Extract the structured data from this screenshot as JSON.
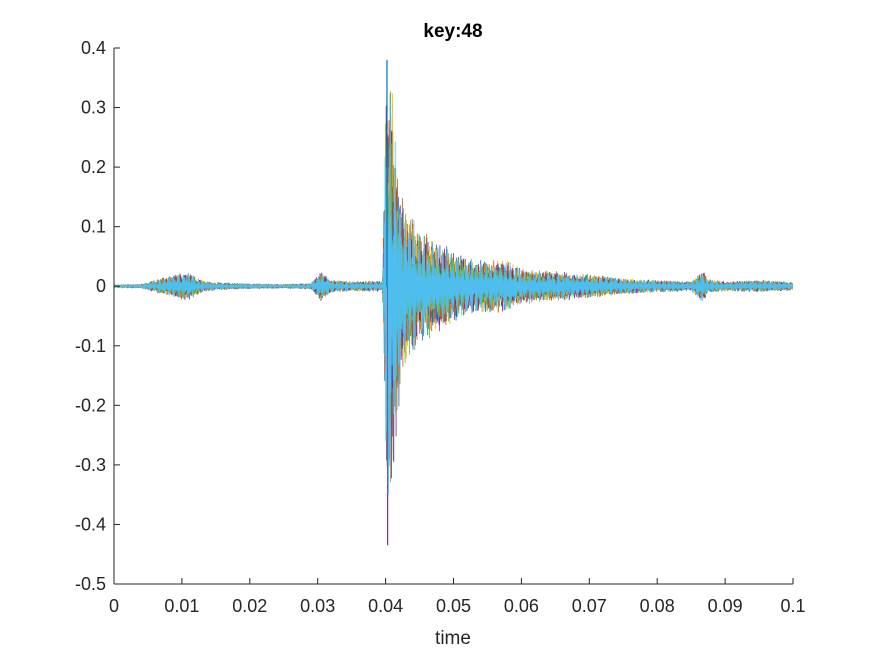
{
  "chart_data": {
    "type": "line",
    "title": "key:48",
    "xlabel": "time",
    "ylabel": "",
    "xlim": [
      0,
      0.1
    ],
    "ylim": [
      -0.5,
      0.4
    ],
    "x_ticks": [
      0,
      0.01,
      0.02,
      0.03,
      0.04,
      0.05,
      0.06,
      0.07,
      0.08,
      0.09,
      0.1
    ],
    "x_tick_labels": [
      "0",
      "0.01",
      "0.02",
      "0.03",
      "0.04",
      "0.05",
      "0.06",
      "0.07",
      "0.08",
      "0.09",
      "0.1"
    ],
    "y_ticks": [
      -0.5,
      -0.4,
      -0.3,
      -0.2,
      -0.1,
      0,
      0.1,
      0.2,
      0.3,
      0.4
    ],
    "y_tick_labels": [
      "-0.5",
      "-0.4",
      "-0.3",
      "-0.2",
      "-0.1",
      "0",
      "0.1",
      "0.2",
      "0.3",
      "0.4"
    ],
    "grid": false,
    "legend": "none",
    "series_colors": [
      "#0072BD",
      "#D95319",
      "#EDB120",
      "#7E2F8E",
      "#77AC30",
      "#4DBEEE"
    ],
    "envelope": {
      "x": [
        0,
        0.004,
        0.006,
        0.0095,
        0.011,
        0.013,
        0.015,
        0.02,
        0.025,
        0.029,
        0.0305,
        0.032,
        0.035,
        0.0395,
        0.0402,
        0.041,
        0.042,
        0.043,
        0.045,
        0.048,
        0.05,
        0.053,
        0.0578,
        0.06,
        0.065,
        0.07,
        0.075,
        0.08,
        0.085,
        0.0868,
        0.0875,
        0.09,
        0.095,
        0.1
      ],
      "amplitude": [
        0.003,
        0.004,
        0.012,
        0.025,
        0.028,
        0.012,
        0.008,
        0.005,
        0.004,
        0.006,
        0.03,
        0.012,
        0.01,
        0.01,
        0.41,
        0.33,
        0.2,
        0.13,
        0.1,
        0.075,
        0.06,
        0.045,
        0.045,
        0.03,
        0.025,
        0.02,
        0.013,
        0.01,
        0.008,
        0.028,
        0.012,
        0.008,
        0.01,
        0.007
      ]
    },
    "extremes": {
      "max": 0.38,
      "min": -0.435,
      "max_x": 0.0402,
      "min_x": 0.0403
    }
  }
}
